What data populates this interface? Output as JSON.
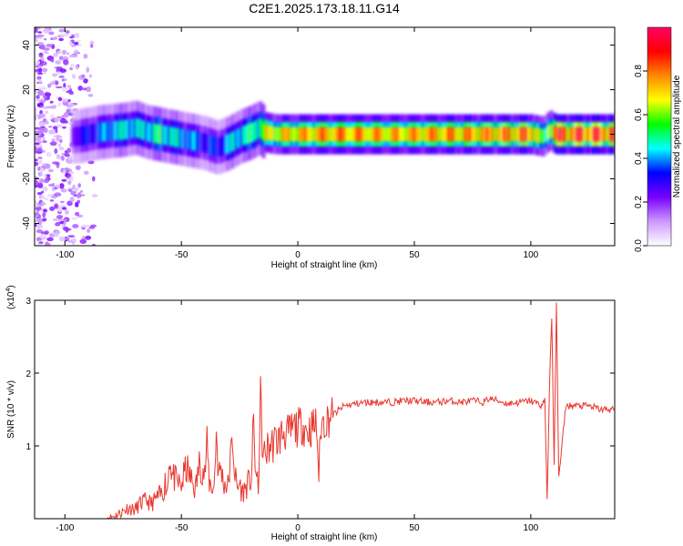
{
  "title": "C2E1.2025.173.18.11.G14",
  "chart_data": [
    {
      "type": "heatmap",
      "xlabel": "Height of straight line (km)",
      "ylabel": "Frequency (Hz)",
      "xlim": [
        -113,
        136
      ],
      "ylim": [
        -50,
        48
      ],
      "xticks": [
        -100,
        -50,
        0,
        50,
        100
      ],
      "yticks": [
        -40,
        -20,
        0,
        20,
        40
      ],
      "colorbar": {
        "label": "Normalized spectral amplitude",
        "range": [
          0,
          1
        ],
        "ticks": [
          0,
          0.2,
          0.4,
          0.6,
          0.8
        ],
        "tick_labels": [
          "0.0",
          "0.2",
          "0.4",
          "0.6",
          "0.8"
        ],
        "colormap": [
          "#ffffff",
          "#cc99ff",
          "#7700ff",
          "#0000ff",
          "#00ffff",
          "#00ff00",
          "#ffff00",
          "#ff8800",
          "#ff0000",
          "#ff0066"
        ]
      },
      "ridge": {
        "x": [
          -95,
          -85,
          -75,
          -70,
          -65,
          -60,
          -55,
          -50,
          -45,
          -40,
          -35,
          -30,
          -25,
          -20,
          -17,
          -15,
          -10,
          0,
          10,
          20,
          40,
          60,
          80,
          100,
          105,
          108,
          110,
          136
        ],
        "frequency": [
          -1,
          1,
          2,
          3,
          1,
          0,
          -1,
          -2,
          -3,
          -4,
          -6,
          -4,
          -1,
          1,
          3,
          1,
          0,
          0,
          0,
          0,
          0,
          0,
          0,
          0,
          -1,
          2,
          0,
          0
        ],
        "amplitude": [
          0.3,
          0.4,
          0.5,
          0.45,
          0.5,
          0.55,
          0.5,
          0.45,
          0.4,
          0.35,
          0.35,
          0.45,
          0.5,
          0.55,
          0.6,
          0.7,
          0.75,
          0.8,
          0.85,
          0.85,
          0.8,
          0.85,
          0.85,
          0.9,
          0.5,
          0.8,
          0.95,
          0.95
        ]
      },
      "noise_region_x": [
        -113,
        -85
      ]
    },
    {
      "type": "line",
      "xlabel": "Height of straight line (km)",
      "ylabel": "SNR (10 * v/v)",
      "y_multiplier_label": "(x10",
      "y_multiplier_exp": "4",
      "xlim": [
        -113,
        136
      ],
      "ylim": [
        0,
        3
      ],
      "xticks": [
        -100,
        -50,
        0,
        50,
        100
      ],
      "yticks": [
        1,
        2,
        3
      ],
      "color": "#e8382f",
      "series": [
        {
          "x": [
            -113,
            -100,
            -90,
            -82,
            -80,
            -78,
            -75,
            -73,
            -70,
            -68,
            -65,
            -63,
            -60,
            -58,
            -57,
            -56,
            -55,
            -54,
            -52,
            -50,
            -48,
            -46,
            -44,
            -42,
            -40,
            -39,
            -38,
            -36,
            -35,
            -34,
            -33,
            -32,
            -30,
            -28,
            -27,
            -26,
            -25,
            -24,
            -22,
            -20,
            -19,
            -18,
            -17,
            -16,
            -15,
            -14,
            -12,
            -10,
            -8,
            -6,
            -4,
            -2,
            0,
            2,
            4,
            6,
            8,
            9,
            10,
            12,
            14,
            16,
            18,
            20,
            25,
            30,
            35,
            40,
            45,
            50,
            55,
            60,
            65,
            70,
            75,
            80,
            82,
            85,
            90,
            95,
            100,
            103,
            105,
            106,
            107,
            108,
            109,
            110,
            111,
            112,
            115,
            120,
            125,
            130,
            136
          ],
          "y": [
            0,
            0,
            0,
            0,
            0.02,
            0.05,
            0.1,
            0.15,
            0.12,
            0.2,
            0.25,
            0.2,
            0.3,
            0.35,
            0.5,
            0.4,
            0.9,
            0.6,
            0.5,
            0.45,
            0.7,
            0.55,
            0.4,
            0.8,
            0.6,
            1.0,
            0.5,
            0.4,
            1.2,
            0.6,
            0.7,
            0.5,
            0.45,
            1.1,
            0.6,
            0.4,
            0.5,
            0.35,
            0.45,
            0.55,
            1.3,
            0.6,
            0.4,
            1.7,
            0.8,
            0.9,
            1.0,
            1.05,
            1.1,
            1.2,
            1.15,
            1.25,
            1.25,
            1.3,
            1.2,
            1.25,
            1.3,
            0.6,
            1.3,
            1.35,
            1.4,
            1.45,
            1.5,
            1.55,
            1.58,
            1.6,
            1.6,
            1.6,
            1.62,
            1.62,
            1.6,
            1.6,
            1.62,
            1.6,
            1.62,
            1.6,
            1.65,
            1.63,
            1.58,
            1.6,
            1.62,
            1.58,
            1.55,
            1.65,
            0.25,
            1.8,
            2.8,
            0.7,
            3.0,
            0.55,
            1.55,
            1.55,
            1.55,
            1.5,
            1.5
          ]
        }
      ]
    }
  ]
}
